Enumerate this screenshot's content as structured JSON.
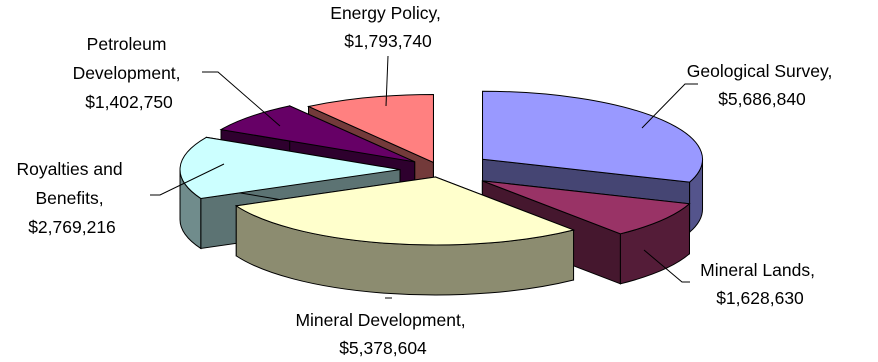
{
  "chart_data": {
    "type": "pie",
    "variant": "3d-exploded",
    "title": "",
    "legend": "none",
    "slices": [
      {
        "name": "Geological Survey",
        "value": 5686840,
        "label": "$5,686,840",
        "color": "#9999ff"
      },
      {
        "name": "Mineral Lands",
        "value": 1628630,
        "label": "$1,628,630",
        "color": "#993366"
      },
      {
        "name": "Mineral Development",
        "value": 5378604,
        "label": "$5,378,604",
        "color": "#ffffcc"
      },
      {
        "name": "Royalties and Benefits",
        "value": 2769216,
        "label": "$2,769,216",
        "color": "#ccffff"
      },
      {
        "name": "Petroleum Development",
        "value": 1402750,
        "label": "$1,402,750",
        "color": "#660066"
      },
      {
        "name": "Energy Policy",
        "value": 1793740,
        "label": "$1,793,740",
        "color": "#ff8080"
      }
    ],
    "label_lines": {
      "geo": [
        "Geological Survey,",
        "$5,686,840"
      ],
      "lands": [
        "Mineral Lands,",
        "$1,628,630"
      ],
      "mdev": [
        "Mineral Development,",
        "$5,378,604"
      ],
      "roy": [
        "Royalties and",
        "Benefits,",
        "$2,769,216"
      ],
      "pet": [
        "Petroleum",
        "Development,",
        "$1,402,750"
      ],
      "energy": [
        "Energy Policy,",
        "$1,793,740"
      ]
    }
  }
}
